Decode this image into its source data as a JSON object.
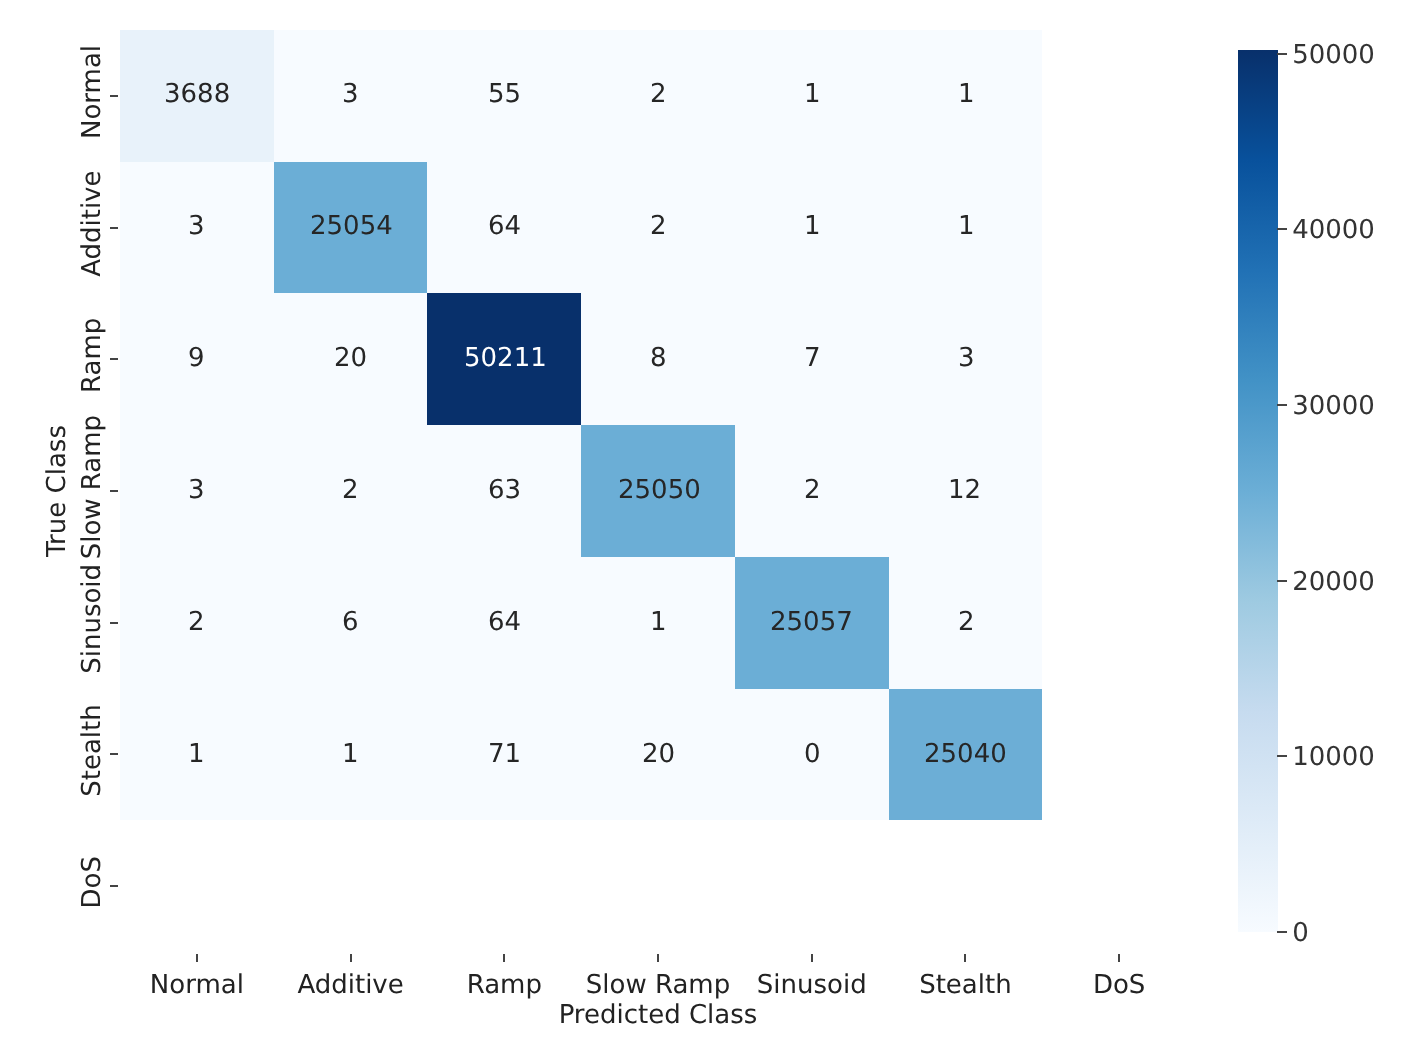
{
  "chart_data": {
    "type": "heatmap",
    "xlabel": "Predicted Class",
    "ylabel": "True Class",
    "categories": [
      "Normal",
      "Additive",
      "Ramp",
      "Slow Ramp",
      "Sinusoid",
      "Stealth",
      "DoS"
    ],
    "y_categories": [
      "Normal",
      "Additive",
      "Ramp",
      "Slow Ramp",
      "Sinusoid",
      "Stealth",
      "DoS"
    ],
    "cells": [
      [
        3688,
        3,
        55,
        2,
        1,
        1,
        null
      ],
      [
        3,
        25054,
        64,
        2,
        1,
        1,
        null
      ],
      [
        9,
        20,
        50211,
        8,
        7,
        3,
        null
      ],
      [
        3,
        2,
        63,
        25050,
        2,
        12,
        null
      ],
      [
        2,
        6,
        64,
        1,
        25057,
        2,
        null
      ],
      [
        1,
        1,
        71,
        20,
        0,
        25040,
        null
      ],
      [
        null,
        null,
        null,
        null,
        null,
        null,
        null
      ]
    ],
    "clim": [
      0,
      50211
    ],
    "cticks": [
      0,
      10000,
      20000,
      30000,
      40000,
      50000
    ],
    "data_labels": true
  }
}
